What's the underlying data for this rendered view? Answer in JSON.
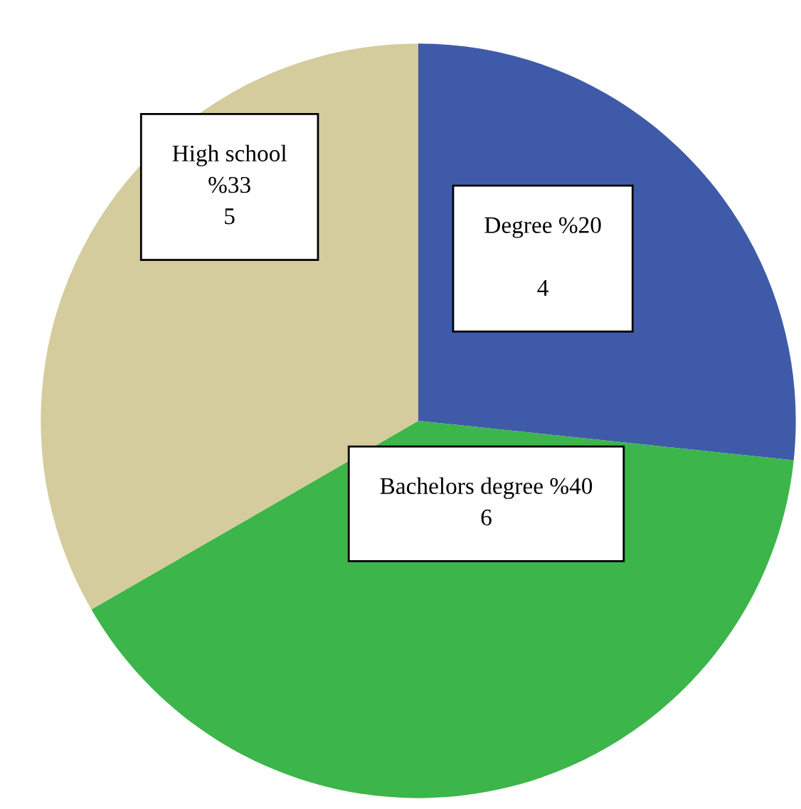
{
  "chart_data": {
    "type": "pie",
    "categories": [
      "Degree",
      "Bachelors degree",
      "High school"
    ],
    "values": [
      4,
      6,
      5
    ],
    "colors": [
      "#3f5aa8",
      "#3cb54a",
      "#d4cc9c"
    ],
    "value_labels": [
      " %20\n\n4",
      " %40\n6",
      "\n%33\n5"
    ],
    "legend": false
  }
}
